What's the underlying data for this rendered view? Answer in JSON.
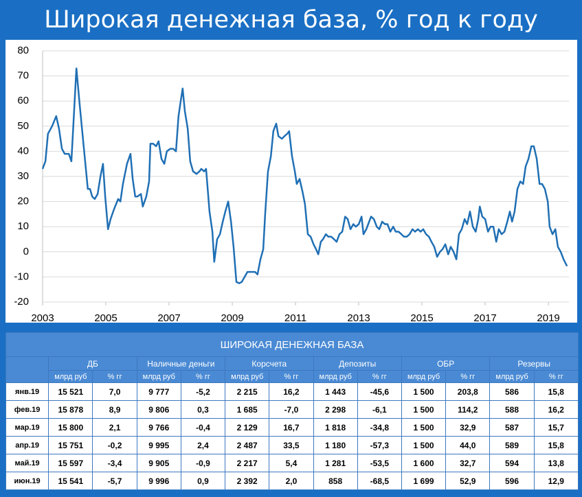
{
  "chart_data": {
    "type": "line",
    "title": "Широкая денежная база, % год к году",
    "x": [
      2003.0,
      2003.09,
      2003.17,
      2003.3,
      2003.43,
      2003.52,
      2003.61,
      2003.7,
      2003.83,
      2003.91,
      2004.07,
      2004.17,
      2004.3,
      2004.43,
      2004.5,
      2004.57,
      2004.65,
      2004.74,
      2004.83,
      2004.91,
      2004.98,
      2005.07,
      2005.15,
      2005.26,
      2005.39,
      2005.46,
      2005.54,
      2005.67,
      2005.78,
      2005.85,
      2005.93,
      2006.0,
      2006.11,
      2006.17,
      2006.28,
      2006.37,
      2006.41,
      2006.5,
      2006.59,
      2006.67,
      2006.76,
      2006.85,
      2006.93,
      2007.04,
      2007.13,
      2007.22,
      2007.3,
      2007.37,
      2007.43,
      2007.5,
      2007.59,
      2007.67,
      2007.76,
      2007.87,
      2007.96,
      2008.02,
      2008.11,
      2008.17,
      2008.28,
      2008.37,
      2008.43,
      2008.52,
      2008.61,
      2008.7,
      2008.78,
      2008.87,
      2008.96,
      2009.04,
      2009.13,
      2009.22,
      2009.3,
      2009.39,
      2009.48,
      2009.61,
      2009.72,
      2009.8,
      2009.89,
      2009.98,
      2010.04,
      2010.13,
      2010.22,
      2010.3,
      2010.39,
      2010.46,
      2010.57,
      2010.65,
      2010.74,
      2010.8,
      2010.89,
      2010.98,
      2011.04,
      2011.13,
      2011.22,
      2011.3,
      2011.39,
      2011.48,
      2011.57,
      2011.65,
      2011.72,
      2011.8,
      2011.87,
      2011.96,
      2012.04,
      2012.13,
      2012.22,
      2012.3,
      2012.39,
      2012.48,
      2012.57,
      2012.65,
      2012.74,
      2012.83,
      2012.91,
      2013.0,
      2013.09,
      2013.15,
      2013.24,
      2013.3,
      2013.39,
      2013.48,
      2013.57,
      2013.65,
      2013.74,
      2013.83,
      2013.91,
      2014.0,
      2014.09,
      2014.17,
      2014.26,
      2014.35,
      2014.43,
      2014.52,
      2014.61,
      2014.7,
      2014.78,
      2014.87,
      2014.96,
      2015.04,
      2015.13,
      2015.22,
      2015.3,
      2015.39,
      2015.48,
      2015.57,
      2015.65,
      2015.74,
      2015.83,
      2015.91,
      2016.0,
      2016.09,
      2016.17,
      2016.26,
      2016.35,
      2016.43,
      2016.52,
      2016.61,
      2016.7,
      2016.78,
      2016.83,
      2016.91,
      2017.0,
      2017.09,
      2017.17,
      2017.26,
      2017.35,
      2017.43,
      2017.52,
      2017.61,
      2017.7,
      2017.78,
      2017.85,
      2017.93,
      2018.02,
      2018.11,
      2018.2,
      2018.28,
      2018.37,
      2018.46,
      2018.54,
      2018.63,
      2018.72,
      2018.8,
      2018.89,
      2018.98,
      2019.04,
      2019.13,
      2019.22,
      2019.3,
      2019.39,
      2019.48,
      2019.59
    ],
    "values": [
      33,
      36,
      47,
      50,
      54,
      49,
      41,
      39,
      39,
      36,
      73,
      59,
      42,
      25,
      25,
      22,
      21,
      23,
      30,
      35,
      22,
      9,
      13,
      17,
      21,
      20,
      27,
      35,
      39,
      29,
      22,
      22,
      23,
      18,
      22,
      28,
      43,
      43,
      42,
      44,
      37,
      35,
      40,
      41,
      41,
      40,
      54,
      60,
      65,
      56,
      49,
      36,
      32,
      31,
      32,
      33,
      32,
      33,
      16,
      8,
      -4,
      5,
      7,
      12,
      16,
      20,
      12,
      2,
      -12,
      -12.5,
      -12,
      -10,
      -8,
      -8,
      -8,
      -9,
      -3,
      1,
      15,
      32,
      38,
      48,
      51,
      46,
      45,
      46,
      47,
      48,
      38,
      32,
      27,
      29,
      24,
      19,
      7,
      6,
      3,
      1,
      -1,
      4,
      5,
      7,
      6,
      6,
      5,
      4,
      7,
      8,
      14,
      13,
      9,
      11,
      10,
      11,
      14,
      7,
      9,
      11,
      14,
      13,
      10,
      9,
      12,
      11,
      11,
      8,
      10,
      8,
      8,
      7,
      6,
      6,
      7,
      9,
      8,
      9,
      8,
      9,
      7,
      6,
      4,
      2,
      -2,
      0,
      1,
      3,
      -1,
      2,
      0,
      -3,
      7,
      9,
      13,
      11,
      16,
      10,
      8,
      13,
      18,
      14,
      13,
      8,
      10,
      10,
      4,
      9,
      7,
      8,
      12,
      16,
      12,
      16,
      25,
      28,
      27,
      34,
      37,
      42,
      42,
      37,
      27,
      27,
      25,
      20,
      10,
      7,
      9,
      2,
      0,
      -3,
      -5.7
    ],
    "color": "#1f6fb4",
    "xlim": [
      2003,
      2019.65
    ],
    "xticks": [
      2003,
      2005,
      2007,
      2009,
      2011,
      2013,
      2015,
      2017,
      2019
    ],
    "ylim": [
      -20,
      80
    ],
    "yticks": [
      -20,
      -10,
      0,
      10,
      20,
      30,
      40,
      50,
      60,
      70,
      80
    ],
    "grid": true
  },
  "table": {
    "title": "ШИРОКАЯ ДЕНЕЖНАЯ БАЗА",
    "groups": [
      "ДБ",
      "Наличные деньги",
      "Корсчета",
      "Депозиты",
      "ОБР",
      "Резервы"
    ],
    "subheaders": [
      "млрд руб",
      "% гг"
    ],
    "rows": [
      {
        "label": "янв.19",
        "cells": [
          "15 521",
          "7,0",
          "9 777",
          "-5,2",
          "2 215",
          "16,2",
          "1 443",
          "-45,6",
          "1 500",
          "203,8",
          "586",
          "15,8"
        ]
      },
      {
        "label": "фев.19",
        "cells": [
          "15 878",
          "8,9",
          "9 806",
          "0,3",
          "1 685",
          "-7,0",
          "2 298",
          "-6,1",
          "1 500",
          "114,2",
          "588",
          "16,2"
        ]
      },
      {
        "label": "мар.19",
        "cells": [
          "15 800",
          "2,1",
          "9 766",
          "-0,4",
          "2 129",
          "16,7",
          "1 818",
          "-34,8",
          "1 500",
          "32,9",
          "587",
          "15,7"
        ]
      },
      {
        "label": "апр.19",
        "cells": [
          "15 751",
          "-0,2",
          "9 995",
          "2,4",
          "2 487",
          "33,5",
          "1 180",
          "-57,3",
          "1 500",
          "44,0",
          "589",
          "15,8"
        ]
      },
      {
        "label": "май.19",
        "cells": [
          "15 597",
          "-3,4",
          "9 905",
          "-0,9",
          "2 217",
          "5,4",
          "1 281",
          "-53,5",
          "1 600",
          "32,7",
          "594",
          "13,8"
        ]
      },
      {
        "label": "июн.19",
        "cells": [
          "15 541",
          "-5,7",
          "9 996",
          "0,9",
          "2 392",
          "2,0",
          "858",
          "-68,5",
          "1 699",
          "52,9",
          "596",
          "12,9"
        ]
      }
    ]
  }
}
